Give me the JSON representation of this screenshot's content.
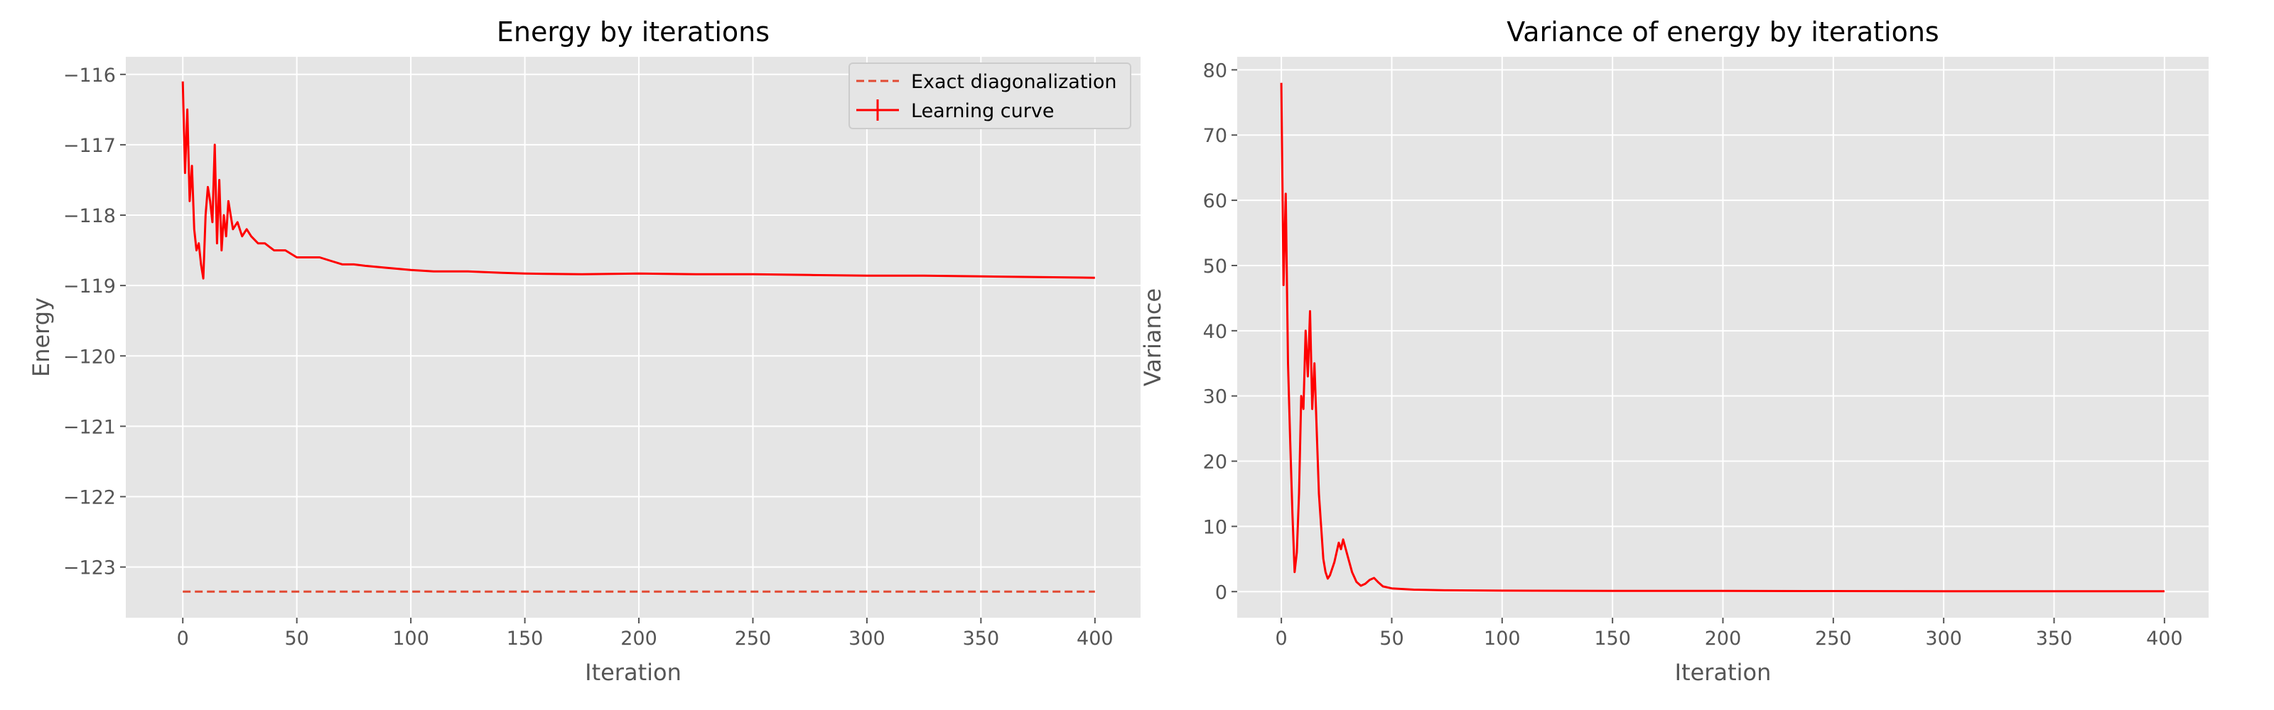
{
  "chart_data": [
    {
      "type": "line",
      "title": "Energy by iterations",
      "xlabel": "Iteration",
      "ylabel": "Energy",
      "xlim": [
        -25,
        420
      ],
      "ylim": [
        -123.72,
        -115.75
      ],
      "xticks": [
        0,
        50,
        100,
        150,
        200,
        250,
        300,
        350,
        400
      ],
      "yticks": [
        -123,
        -122,
        -121,
        -120,
        -119,
        -118,
        -117,
        -116
      ],
      "grid": true,
      "legend_position": "top-right",
      "series": [
        {
          "name": "Exact diagonalization",
          "style": "dashed",
          "color": "#e24a33",
          "x": [
            0,
            400
          ],
          "y": [
            -123.35,
            -123.35
          ]
        },
        {
          "name": "Learning curve",
          "style": "solid",
          "color": "#ff0000",
          "x": [
            0,
            1,
            2,
            3,
            4,
            5,
            6,
            7,
            8,
            9,
            10,
            11,
            12,
            13,
            14,
            15,
            16,
            17,
            18,
            19,
            20,
            22,
            24,
            26,
            28,
            30,
            33,
            36,
            40,
            45,
            50,
            55,
            60,
            65,
            70,
            75,
            80,
            90,
            100,
            110,
            125,
            140,
            150,
            175,
            200,
            225,
            250,
            275,
            300,
            325,
            350,
            375,
            400
          ],
          "y": [
            -116.1,
            -117.4,
            -116.5,
            -117.8,
            -117.3,
            -118.2,
            -118.5,
            -118.4,
            -118.7,
            -118.9,
            -118.0,
            -117.6,
            -117.8,
            -118.1,
            -117.0,
            -118.4,
            -117.5,
            -118.5,
            -118.0,
            -118.3,
            -117.8,
            -118.2,
            -118.1,
            -118.3,
            -118.2,
            -118.3,
            -118.4,
            -118.4,
            -118.5,
            -118.5,
            -118.6,
            -118.6,
            -118.6,
            -118.65,
            -118.7,
            -118.7,
            -118.72,
            -118.75,
            -118.78,
            -118.8,
            -118.8,
            -118.82,
            -118.83,
            -118.84,
            -118.83,
            -118.84,
            -118.84,
            -118.85,
            -118.86,
            -118.86,
            -118.87,
            -118.88,
            -118.89
          ]
        }
      ]
    },
    {
      "type": "line",
      "title": "Variance of energy by iterations",
      "xlabel": "Iteration",
      "ylabel": "Variance",
      "xlim": [
        -20,
        420
      ],
      "ylim": [
        -4,
        82
      ],
      "xticks": [
        0,
        50,
        100,
        150,
        200,
        250,
        300,
        350,
        400
      ],
      "yticks": [
        0,
        10,
        20,
        30,
        40,
        50,
        60,
        70,
        80
      ],
      "grid": true,
      "series": [
        {
          "style": "solid",
          "color": "#ff0000",
          "x": [
            0,
            1,
            2,
            3,
            4,
            5,
            6,
            7,
            8,
            9,
            10,
            11,
            12,
            13,
            14,
            15,
            16,
            17,
            18,
            19,
            20,
            21,
            22,
            24,
            26,
            27,
            28,
            30,
            32,
            34,
            36,
            38,
            40,
            42,
            44,
            46,
            50,
            60,
            75,
            100,
            150,
            200,
            250,
            300,
            350,
            400
          ],
          "y": [
            78,
            47,
            61,
            35,
            23,
            12,
            3,
            6,
            15,
            30,
            28,
            40,
            33,
            43,
            28,
            35,
            25,
            15,
            10,
            5,
            3,
            2,
            2.5,
            4.5,
            7.5,
            6.5,
            8,
            5.5,
            3,
            1.5,
            0.9,
            1.2,
            1.8,
            2.1,
            1.4,
            0.8,
            0.5,
            0.3,
            0.2,
            0.15,
            0.1,
            0.1,
            0.08,
            0.06,
            0.05,
            0.05
          ]
        }
      ]
    }
  ]
}
